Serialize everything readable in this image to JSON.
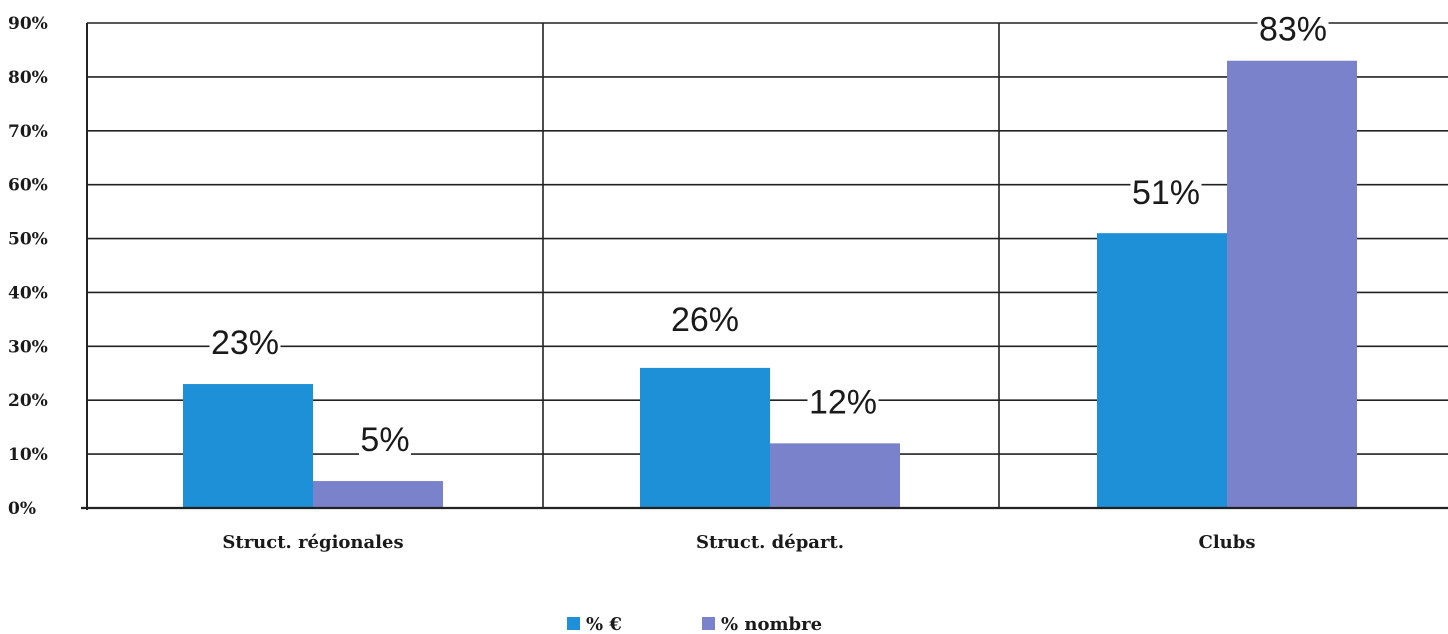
{
  "chart_data": {
    "type": "bar",
    "categories": [
      "Struct. régionales",
      "Struct. départ.",
      "Clubs"
    ],
    "series": [
      {
        "name": "% €",
        "values": [
          23,
          26,
          51
        ],
        "labels": [
          "23%",
          "26%",
          "51%"
        ],
        "color": "#1e90d8"
      },
      {
        "name": "% nombre",
        "values": [
          5,
          12,
          83
        ],
        "labels": [
          "5%",
          "12%",
          "83%"
        ],
        "color": "#7b82cc"
      }
    ],
    "title": "",
    "xlabel": "",
    "ylabel": "",
    "ylim": [
      0,
      90
    ],
    "yticks": [
      "0%",
      "10%",
      "20%",
      "30%",
      "40%",
      "50%",
      "60%",
      "70%",
      "80%",
      "90%"
    ],
    "grid": true,
    "legend_position": "bottom"
  }
}
